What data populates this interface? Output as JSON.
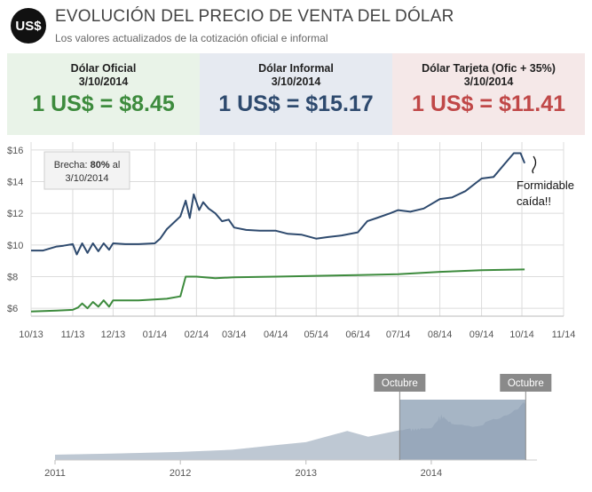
{
  "header": {
    "logo_text": "US$",
    "title": "EVOLUCIÓN DEL PRECIO DE VENTA DEL DÓLAR",
    "subtitle": "Los valores actualizados de la cotización oficial e informal"
  },
  "boxes": [
    {
      "name": "Dólar Oficial",
      "date": "3/10/2014",
      "value": "1 US$ = $8.45",
      "color": "#3d8b3d"
    },
    {
      "name": "Dólar Informal",
      "date": "3/10/2014",
      "value": "1 US$ = $15.17",
      "color": "#2e4a6e"
    },
    {
      "name": "Dólar Tarjeta (Ofic + 35%)",
      "date": "3/10/2014",
      "value": "1 US$ = $11.41",
      "color": "#c04848"
    }
  ],
  "annotations": {
    "brecha_prefix": "Brecha: ",
    "brecha_value": "80%",
    "brecha_suffix": " al",
    "brecha_date": "3/10/2014",
    "comment_line1": "Formidable",
    "comment_line2": "caída!!"
  },
  "navigator": {
    "year_labels": [
      "2011",
      "2012",
      "2013",
      "2014"
    ],
    "handle_left": "Octubre",
    "handle_right": "Octubre"
  },
  "colors": {
    "informal": "#2e4a6e",
    "oficial": "#3d8b3d"
  },
  "chart_data": {
    "type": "line",
    "x_tick_labels": [
      "10/13",
      "11/13",
      "12/13",
      "01/14",
      "02/14",
      "03/14",
      "04/14",
      "05/14",
      "06/14",
      "07/14",
      "08/14",
      "09/14",
      "10/14",
      "11/14"
    ],
    "y_tick_labels": [
      "$6",
      "$8",
      "$10",
      "$12",
      "$14",
      "$16"
    ],
    "ylim": [
      5.5,
      16.5
    ],
    "grid": true,
    "series": [
      {
        "color": "#2e4a6e",
        "points": [
          [
            "2013-10-01",
            9.65
          ],
          [
            "2013-10-10",
            9.65
          ],
          [
            "2013-10-20",
            9.9
          ],
          [
            "2013-10-25",
            9.95
          ],
          [
            "2013-11-01",
            10.05
          ],
          [
            "2013-11-04",
            9.4
          ],
          [
            "2013-11-08",
            10.1
          ],
          [
            "2013-11-12",
            9.5
          ],
          [
            "2013-11-16",
            10.1
          ],
          [
            "2013-11-20",
            9.6
          ],
          [
            "2013-11-24",
            10.1
          ],
          [
            "2013-11-28",
            9.7
          ],
          [
            "2013-12-01",
            10.1
          ],
          [
            "2013-12-10",
            10.05
          ],
          [
            "2013-12-20",
            10.05
          ],
          [
            "2014-01-01",
            10.1
          ],
          [
            "2014-01-05",
            10.4
          ],
          [
            "2014-01-10",
            11.0
          ],
          [
            "2014-01-15",
            11.4
          ],
          [
            "2014-01-20",
            11.8
          ],
          [
            "2014-01-24",
            12.8
          ],
          [
            "2014-01-27",
            11.7
          ],
          [
            "2014-01-30",
            13.2
          ],
          [
            "2014-02-03",
            12.2
          ],
          [
            "2014-02-06",
            12.7
          ],
          [
            "2014-02-10",
            12.3
          ],
          [
            "2014-02-15",
            12.0
          ],
          [
            "2014-02-20",
            11.5
          ],
          [
            "2014-02-25",
            11.6
          ],
          [
            "2014-03-01",
            11.1
          ],
          [
            "2014-03-10",
            10.95
          ],
          [
            "2014-03-20",
            10.9
          ],
          [
            "2014-04-01",
            10.9
          ],
          [
            "2014-04-10",
            10.7
          ],
          [
            "2014-04-20",
            10.65
          ],
          [
            "2014-05-01",
            10.4
          ],
          [
            "2014-05-10",
            10.5
          ],
          [
            "2014-05-20",
            10.6
          ],
          [
            "2014-06-01",
            10.8
          ],
          [
            "2014-06-08",
            11.5
          ],
          [
            "2014-06-15",
            11.7
          ],
          [
            "2014-06-25",
            12.0
          ],
          [
            "2014-07-01",
            12.2
          ],
          [
            "2014-07-10",
            12.1
          ],
          [
            "2014-07-20",
            12.3
          ],
          [
            "2014-08-01",
            12.9
          ],
          [
            "2014-08-10",
            13.0
          ],
          [
            "2014-08-20",
            13.4
          ],
          [
            "2014-09-01",
            14.2
          ],
          [
            "2014-09-10",
            14.3
          ],
          [
            "2014-09-18",
            15.1
          ],
          [
            "2014-09-25",
            15.8
          ],
          [
            "2014-09-30",
            15.8
          ],
          [
            "2014-10-03",
            15.17
          ]
        ]
      },
      {
        "color": "#3d8b3d",
        "points": [
          [
            "2013-10-01",
            5.8
          ],
          [
            "2013-10-20",
            5.85
          ],
          [
            "2013-11-01",
            5.9
          ],
          [
            "2013-11-05",
            6.05
          ],
          [
            "2013-11-08",
            6.3
          ],
          [
            "2013-11-12",
            6.0
          ],
          [
            "2013-11-16",
            6.4
          ],
          [
            "2013-11-20",
            6.1
          ],
          [
            "2013-11-24",
            6.5
          ],
          [
            "2013-11-28",
            6.1
          ],
          [
            "2013-12-01",
            6.5
          ],
          [
            "2013-12-20",
            6.5
          ],
          [
            "2014-01-10",
            6.6
          ],
          [
            "2014-01-20",
            6.75
          ],
          [
            "2014-01-24",
            8.0
          ],
          [
            "2014-02-01",
            8.0
          ],
          [
            "2014-02-15",
            7.9
          ],
          [
            "2014-03-01",
            7.95
          ],
          [
            "2014-04-01",
            8.0
          ],
          [
            "2014-05-01",
            8.05
          ],
          [
            "2014-06-01",
            8.1
          ],
          [
            "2014-07-01",
            8.15
          ],
          [
            "2014-08-01",
            8.3
          ],
          [
            "2014-09-01",
            8.4
          ],
          [
            "2014-10-03",
            8.45
          ]
        ]
      }
    ]
  }
}
